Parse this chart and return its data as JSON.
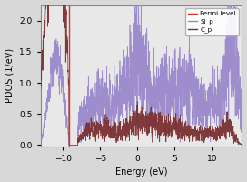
{
  "title": "",
  "xlabel": "Energy (eV)",
  "ylabel": "PDOS (1/eV)",
  "xlim": [
    -13,
    14
  ],
  "ylim": [
    -0.02,
    2.25
  ],
  "fermi_level": -9.2,
  "fermi_color": "#e03030",
  "si_p_color": "#9988cc",
  "c_p_color": "#7b3030",
  "legend_labels": [
    "Fermi level",
    "Si_p",
    "C_p"
  ],
  "xticks": [
    -10,
    -5,
    0,
    5,
    10
  ],
  "yticks": [
    0.0,
    0.5,
    1.0,
    1.5,
    2.0
  ],
  "bg_color": "#e8e8e8",
  "fig_color": "#d8d8d8",
  "seed": 7
}
